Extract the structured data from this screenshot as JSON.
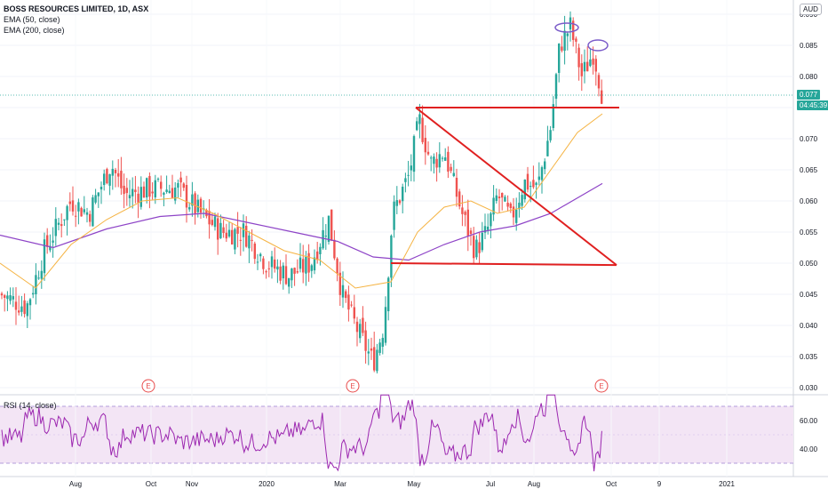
{
  "legend": {
    "title": "BOSS RESOURCES LIMITED, 1D, ASX",
    "ema50": "EMA (50, close)",
    "ema200": "EMA (200, close)",
    "rsi": "RSI (14, close)"
  },
  "currency": "AUD",
  "price_tags": {
    "last": "0.077",
    "countdown": "04:45:39"
  },
  "colors": {
    "up": "#26a69a",
    "down": "#ef5350",
    "ema50": "#f5b342",
    "ema200": "#8e44c7",
    "trend": "#e02020",
    "rsi": "#9c27b0",
    "rsi_band": "#f3e5f5",
    "annot": "#7b5cc9",
    "last_tag": "#26a69a",
    "countdown_tag": "#26a69a"
  },
  "earnings_marker": "E",
  "chart_data": {
    "type": "candlestick",
    "price_axis": {
      "ylim": [
        0.029,
        0.0925
      ],
      "ticks": [
        "0.030",
        "0.035",
        "0.040",
        "0.045",
        "0.050",
        "0.055",
        "0.060",
        "0.065",
        "0.070",
        "0.075",
        "0.080",
        "0.085",
        "0.090"
      ]
    },
    "time_axis": {
      "labels": [
        "Aug",
        "Oct",
        "Nov",
        "2020",
        "Mar",
        "May",
        "Jul",
        "Aug",
        "Oct",
        "9",
        "2021"
      ]
    },
    "ema50_shape": [
      [
        0,
        0.05
      ],
      [
        40,
        0.046
      ],
      [
        80,
        0.053
      ],
      [
        120,
        0.057
      ],
      [
        160,
        0.06
      ],
      [
        200,
        0.0605
      ],
      [
        240,
        0.058
      ],
      [
        280,
        0.055
      ],
      [
        320,
        0.052
      ],
      [
        360,
        0.0505
      ],
      [
        400,
        0.046
      ],
      [
        440,
        0.047
      ],
      [
        470,
        0.055
      ],
      [
        500,
        0.059
      ],
      [
        530,
        0.06
      ],
      [
        560,
        0.058
      ],
      [
        590,
        0.059
      ],
      [
        620,
        0.065
      ],
      [
        650,
        0.071
      ],
      [
        678,
        0.074
      ]
    ],
    "ema200_shape": [
      [
        0,
        0.0545
      ],
      [
        60,
        0.0525
      ],
      [
        120,
        0.0555
      ],
      [
        180,
        0.0575
      ],
      [
        230,
        0.058
      ],
      [
        280,
        0.0565
      ],
      [
        330,
        0.055
      ],
      [
        380,
        0.0535
      ],
      [
        420,
        0.051
      ],
      [
        460,
        0.0505
      ],
      [
        500,
        0.053
      ],
      [
        540,
        0.055
      ],
      [
        580,
        0.056
      ],
      [
        620,
        0.058
      ],
      [
        678,
        0.0628
      ]
    ],
    "rsi_axis": {
      "ylim": [
        20,
        80
      ],
      "ticks": [
        "40.00",
        "60.00"
      ],
      "bands": [
        30,
        70
      ]
    },
    "trendlines": [
      {
        "from": [
          468,
          0.075
        ],
        "to": [
          697,
          0.075
        ]
      },
      {
        "from": [
          468,
          0.075
        ],
        "to": [
          694,
          0.0497
        ]
      },
      {
        "from": [
          440,
          0.05
        ],
        "to": [
          694,
          0.0497
        ]
      }
    ],
    "annotations": [
      "circle-top-1",
      "circle-top-2"
    ],
    "earnings_x": [
      167,
      397,
      677
    ]
  }
}
